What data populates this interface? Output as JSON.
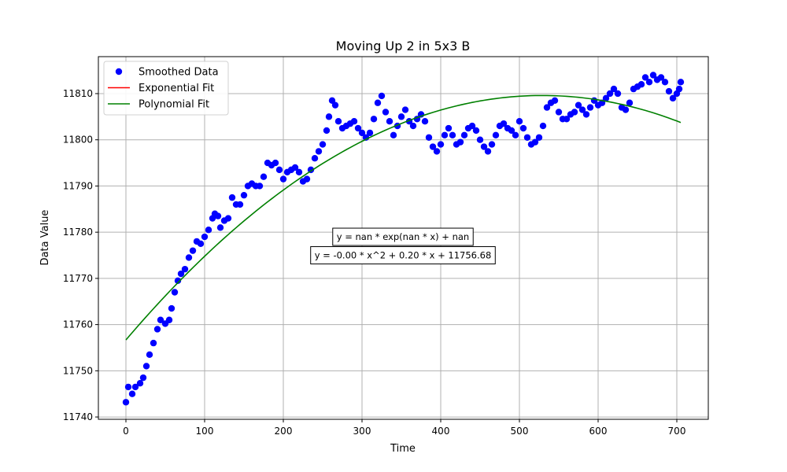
{
  "chart_data": {
    "type": "scatter",
    "title": "Moving Up 2 in 5x3 B",
    "xlabel": "Time",
    "ylabel": "Data Value",
    "xlim": [
      -35,
      740
    ],
    "ylim": [
      11739.5,
      11818
    ],
    "xticks": [
      0,
      100,
      200,
      300,
      400,
      500,
      600,
      700
    ],
    "yticks": [
      11740,
      11750,
      11760,
      11770,
      11780,
      11790,
      11800,
      11810
    ],
    "grid": true,
    "legend_position": "top-left",
    "series": [
      {
        "name": "Smoothed Data",
        "kind": "markers",
        "color": "#0000ff",
        "points": [
          [
            0,
            11743.2
          ],
          [
            3,
            11746.5
          ],
          [
            8,
            11745.0
          ],
          [
            12,
            11746.5
          ],
          [
            18,
            11747.3
          ],
          [
            22,
            11748.5
          ],
          [
            26,
            11751.0
          ],
          [
            30,
            11753.5
          ],
          [
            35,
            11756.0
          ],
          [
            40,
            11759.0
          ],
          [
            44,
            11761.0
          ],
          [
            50,
            11760.2
          ],
          [
            55,
            11761.0
          ],
          [
            58,
            11763.5
          ],
          [
            62,
            11767.0
          ],
          [
            66,
            11769.5
          ],
          [
            70,
            11771.0
          ],
          [
            75,
            11772.0
          ],
          [
            80,
            11774.5
          ],
          [
            85,
            11776.0
          ],
          [
            90,
            11778.0
          ],
          [
            95,
            11777.5
          ],
          [
            100,
            11779.0
          ],
          [
            105,
            11780.5
          ],
          [
            110,
            11783.0
          ],
          [
            113,
            11784.0
          ],
          [
            117,
            11783.5
          ],
          [
            120,
            11781.0
          ],
          [
            125,
            11782.5
          ],
          [
            130,
            11783.0
          ],
          [
            135,
            11787.5
          ],
          [
            140,
            11786.0
          ],
          [
            145,
            11786.0
          ],
          [
            150,
            11788.0
          ],
          [
            155,
            11790.0
          ],
          [
            160,
            11790.5
          ],
          [
            165,
            11790.0
          ],
          [
            170,
            11790.0
          ],
          [
            175,
            11792.0
          ],
          [
            180,
            11795.0
          ],
          [
            185,
            11794.5
          ],
          [
            190,
            11795.0
          ],
          [
            195,
            11793.5
          ],
          [
            200,
            11791.5
          ],
          [
            205,
            11793.0
          ],
          [
            210,
            11793.5
          ],
          [
            215,
            11794.0
          ],
          [
            220,
            11793.0
          ],
          [
            225,
            11791.0
          ],
          [
            230,
            11791.5
          ],
          [
            235,
            11793.5
          ],
          [
            240,
            11796.0
          ],
          [
            245,
            11797.5
          ],
          [
            250,
            11799.0
          ],
          [
            255,
            11802.0
          ],
          [
            258,
            11805.0
          ],
          [
            262,
            11808.5
          ],
          [
            266,
            11807.5
          ],
          [
            270,
            11804.0
          ],
          [
            275,
            11802.5
          ],
          [
            280,
            11803.0
          ],
          [
            285,
            11803.5
          ],
          [
            290,
            11804.0
          ],
          [
            295,
            11802.5
          ],
          [
            300,
            11801.5
          ],
          [
            305,
            11800.5
          ],
          [
            310,
            11801.5
          ],
          [
            315,
            11804.5
          ],
          [
            320,
            11808.0
          ],
          [
            325,
            11809.5
          ],
          [
            330,
            11806.0
          ],
          [
            335,
            11804.0
          ],
          [
            340,
            11801.0
          ],
          [
            345,
            11803.0
          ],
          [
            350,
            11805.0
          ],
          [
            355,
            11806.5
          ],
          [
            360,
            11804.0
          ],
          [
            365,
            11803.0
          ],
          [
            370,
            11804.5
          ],
          [
            375,
            11805.5
          ],
          [
            380,
            11804.0
          ],
          [
            385,
            11800.5
          ],
          [
            390,
            11798.5
          ],
          [
            395,
            11797.5
          ],
          [
            400,
            11799.0
          ],
          [
            405,
            11801.0
          ],
          [
            410,
            11802.5
          ],
          [
            415,
            11801.0
          ],
          [
            420,
            11799.0
          ],
          [
            425,
            11799.5
          ],
          [
            430,
            11801.0
          ],
          [
            435,
            11802.5
          ],
          [
            440,
            11803.0
          ],
          [
            445,
            11802.0
          ],
          [
            450,
            11800.0
          ],
          [
            455,
            11798.5
          ],
          [
            460,
            11797.5
          ],
          [
            465,
            11799.0
          ],
          [
            470,
            11801.0
          ],
          [
            475,
            11803.0
          ],
          [
            480,
            11803.5
          ],
          [
            485,
            11802.5
          ],
          [
            490,
            11802.0
          ],
          [
            495,
            11801.0
          ],
          [
            500,
            11804.0
          ],
          [
            505,
            11802.5
          ],
          [
            510,
            11800.5
          ],
          [
            515,
            11799.0
          ],
          [
            520,
            11799.5
          ],
          [
            525,
            11800.5
          ],
          [
            530,
            11803.0
          ],
          [
            535,
            11807.0
          ],
          [
            540,
            11808.0
          ],
          [
            545,
            11808.5
          ],
          [
            550,
            11806.0
          ],
          [
            555,
            11804.5
          ],
          [
            560,
            11804.5
          ],
          [
            565,
            11805.5
          ],
          [
            570,
            11806.0
          ],
          [
            575,
            11807.5
          ],
          [
            580,
            11806.5
          ],
          [
            585,
            11805.5
          ],
          [
            590,
            11807.0
          ],
          [
            595,
            11808.5
          ],
          [
            600,
            11807.5
          ],
          [
            605,
            11808.0
          ],
          [
            610,
            11809.0
          ],
          [
            615,
            11810.0
          ],
          [
            620,
            11811.0
          ],
          [
            625,
            11810.0
          ],
          [
            630,
            11807.0
          ],
          [
            635,
            11806.5
          ],
          [
            640,
            11808.0
          ],
          [
            645,
            11811.0
          ],
          [
            650,
            11811.5
          ],
          [
            655,
            11812.0
          ],
          [
            660,
            11813.5
          ],
          [
            665,
            11812.5
          ],
          [
            670,
            11814.0
          ],
          [
            675,
            11813.0
          ],
          [
            680,
            11813.5
          ],
          [
            685,
            11812.5
          ],
          [
            690,
            11810.5
          ],
          [
            695,
            11809.0
          ],
          [
            700,
            11810.0
          ],
          [
            703,
            11811.0
          ],
          [
            705,
            11812.5
          ]
        ]
      },
      {
        "name": "Exponential Fit",
        "kind": "line",
        "color": "#ff0000",
        "points": []
      },
      {
        "name": "Polynomial Fit",
        "kind": "line",
        "color": "#008000",
        "equation": {
          "a": -0.000189,
          "b": 0.2,
          "c": 11756.68
        },
        "x_range": [
          0,
          705
        ]
      }
    ],
    "annotations": [
      {
        "text": "y = nan * exp(nan * x) + nan",
        "x": 352,
        "y": 11779
      },
      {
        "text": "y = -0.00 * x^2 + 0.20 * x + 11756.68",
        "x": 352,
        "y": 11775
      }
    ]
  }
}
